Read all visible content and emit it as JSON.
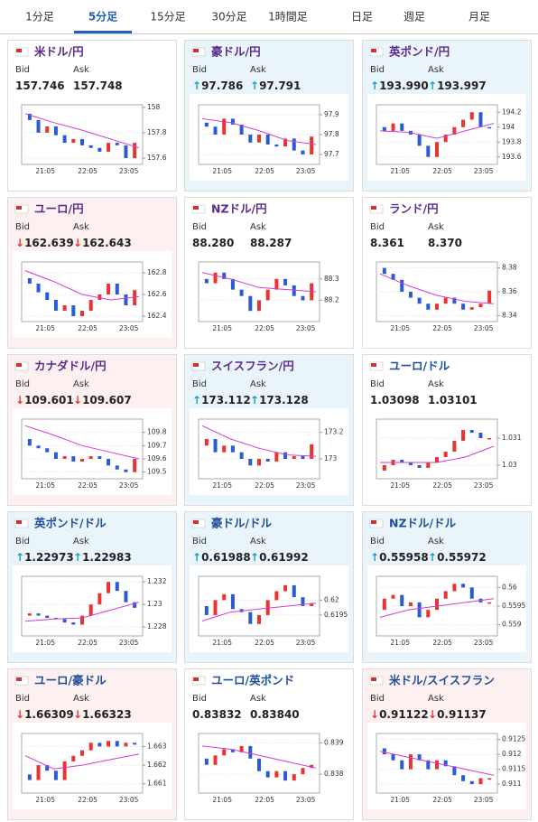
{
  "tabs": {
    "items": [
      "1分足",
      "5分足",
      "15分足",
      "30分足",
      "1時間足",
      "日足",
      "週足",
      "月足"
    ],
    "selected": 1
  },
  "labels": {
    "bid": "Bid",
    "ask": "Ask"
  },
  "panels": [
    {
      "title": "米ドル/円",
      "title_color": "#5a2a8e",
      "bg": "#ffffff",
      "arrow": null,
      "bid": "157.746",
      "ask": "157.748",
      "chart": {
        "type": "candle",
        "xticks": [
          "21:05",
          "22:05",
          "23:05"
        ],
        "ylim": [
          157.55,
          158.02
        ],
        "yticks": [
          157.6,
          157.8,
          158
        ],
        "values": [
          157.95,
          157.9,
          157.8,
          157.85,
          157.78,
          157.72,
          157.75,
          157.7,
          157.68,
          157.65,
          157.72,
          157.7,
          157.6,
          157.72
        ],
        "ma": [
          157.95,
          157.88,
          157.82,
          157.75,
          157.68
        ]
      }
    },
    {
      "title": "豪ドル/円",
      "title_color": "#5a2a8e",
      "bg": "#eaf4fb",
      "arrow": "↑",
      "bid": "97.786",
      "ask": "97.791",
      "chart": {
        "type": "candle",
        "xticks": [
          "21:05",
          "22:05",
          "23:05"
        ],
        "ylim": [
          97.65,
          97.95
        ],
        "yticks": [
          97.7,
          97.8,
          97.9
        ],
        "values": [
          97.86,
          97.84,
          97.8,
          97.88,
          97.85,
          97.8,
          97.76,
          97.8,
          97.75,
          97.74,
          97.78,
          97.72,
          97.7,
          97.79
        ],
        "ma": [
          97.88,
          97.86,
          97.82,
          97.77,
          97.75
        ]
      }
    },
    {
      "title": "英ポンド/円",
      "title_color": "#5a2a8e",
      "bg": "#eaf4fb",
      "arrow": "↑",
      "bid": "193.990",
      "ask": "193.997",
      "chart": {
        "type": "candle",
        "xticks": [
          "21:05",
          "22:05",
          "23:05"
        ],
        "ylim": [
          193.5,
          194.3
        ],
        "yticks": [
          193.6,
          193.8,
          194,
          194.2
        ],
        "values": [
          194.0,
          193.95,
          194.05,
          193.95,
          193.9,
          193.75,
          193.6,
          193.8,
          193.9,
          194.0,
          194.1,
          194.2,
          194.0,
          193.99
        ],
        "ma": [
          193.95,
          193.93,
          193.85,
          193.95,
          194.05
        ]
      }
    },
    {
      "title": "ユーロ/円",
      "title_color": "#5a2a8e",
      "bg": "#fdf0f0",
      "arrow": "↓",
      "bid": "162.639",
      "ask": "162.643",
      "chart": {
        "type": "candle",
        "xticks": [
          "21:05",
          "22:05",
          "23:05"
        ],
        "ylim": [
          162.35,
          162.9
        ],
        "yticks": [
          162.4,
          162.6,
          162.8
        ],
        "values": [
          162.75,
          162.7,
          162.62,
          162.55,
          162.45,
          162.5,
          162.4,
          162.45,
          162.55,
          162.6,
          162.7,
          162.6,
          162.5,
          162.64
        ],
        "ma": [
          162.82,
          162.72,
          162.6,
          162.55,
          162.58
        ]
      }
    },
    {
      "title": "NZドル/円",
      "title_color": "#5a2a8e",
      "bg": "#ffffff",
      "arrow": null,
      "bid": "88.280",
      "ask": "88.287",
      "chart": {
        "type": "candle",
        "xticks": [
          "21:05",
          "22:05",
          "23:05"
        ],
        "ylim": [
          88.1,
          88.38
        ],
        "yticks": [
          88.2,
          88.3
        ],
        "values": [
          88.3,
          88.28,
          88.33,
          88.3,
          88.25,
          88.22,
          88.15,
          88.2,
          88.25,
          88.3,
          88.27,
          88.22,
          88.2,
          88.28
        ],
        "ma": [
          88.33,
          88.3,
          88.26,
          88.25,
          88.24
        ]
      }
    },
    {
      "title": "ランド/円",
      "title_color": "#5a2a8e",
      "bg": "#ffffff",
      "arrow": null,
      "bid": "8.361",
      "ask": "8.370",
      "chart": {
        "type": "candle",
        "xticks": [
          "21:05",
          "22:05",
          "23:05"
        ],
        "ylim": [
          8.335,
          8.385
        ],
        "yticks": [
          8.34,
          8.36,
          8.38
        ],
        "values": [
          8.38,
          8.375,
          8.37,
          8.36,
          8.355,
          8.35,
          8.345,
          8.35,
          8.355,
          8.35,
          8.345,
          8.347,
          8.35,
          8.361
        ],
        "ma": [
          8.375,
          8.365,
          8.357,
          8.352,
          8.35
        ]
      }
    },
    {
      "title": "カナダドル/円",
      "title_color": "#5a2a8e",
      "bg": "#fdf0f0",
      "arrow": "↓",
      "bid": "109.601",
      "ask": "109.607",
      "chart": {
        "type": "candle",
        "xticks": [
          "21:05",
          "22:05",
          "23:05"
        ],
        "ylim": [
          109.45,
          109.9
        ],
        "yticks": [
          109.5,
          109.6,
          109.7,
          109.8
        ],
        "values": [
          109.75,
          109.7,
          109.68,
          109.65,
          109.6,
          109.62,
          109.58,
          109.6,
          109.62,
          109.6,
          109.55,
          109.52,
          109.5,
          109.6
        ],
        "ma": [
          109.85,
          109.78,
          109.7,
          109.65,
          109.6
        ]
      }
    },
    {
      "title": "スイスフラン/円",
      "title_color": "#5a2a8e",
      "bg": "#eaf4fb",
      "arrow": "↑",
      "bid": "173.112",
      "ask": "173.128",
      "chart": {
        "type": "candle",
        "xticks": [
          "21:05",
          "22:05",
          "23:05"
        ],
        "ylim": [
          172.85,
          173.3
        ],
        "yticks": [
          173,
          173.2
        ],
        "values": [
          173.1,
          173.15,
          173.05,
          173.1,
          173.05,
          173.0,
          172.95,
          173.0,
          172.98,
          173.05,
          173.0,
          173.02,
          173.0,
          173.11
        ],
        "ma": [
          173.25,
          173.15,
          173.08,
          173.03,
          173.02
        ]
      }
    },
    {
      "title": "ユーロ/ドル",
      "title_color": "#1f4f9c",
      "bg": "#ffffff",
      "arrow": null,
      "bid": "1.03098",
      "ask": "1.03101",
      "chart": {
        "type": "candle",
        "xticks": [
          "21:05",
          "22:05",
          "23:05"
        ],
        "ylim": [
          1.0295,
          1.0317
        ],
        "yticks": [
          1.03,
          1.031
        ],
        "values": [
          1.0298,
          1.03,
          1.0302,
          1.0301,
          1.03,
          1.0299,
          1.0301,
          1.0303,
          1.0305,
          1.0309,
          1.0313,
          1.0312,
          1.031,
          1.031
        ],
        "ma": [
          1.0301,
          1.0301,
          1.0301,
          1.0303,
          1.0307
        ]
      }
    },
    {
      "title": "英ポンド/ドル",
      "title_color": "#1f4f9c",
      "bg": "#eaf4fb",
      "arrow": "↑",
      "bid": "1.22973",
      "ask": "1.22983",
      "chart": {
        "type": "candle",
        "xticks": [
          "21:05",
          "22:05",
          "23:05"
        ],
        "ylim": [
          1.2272,
          1.2325
        ],
        "yticks": [
          1.228,
          1.23,
          1.232
        ],
        "values": [
          1.229,
          1.2292,
          1.229,
          1.2288,
          1.2287,
          1.2284,
          1.2282,
          1.229,
          1.23,
          1.231,
          1.232,
          1.2312,
          1.2302,
          1.2297
        ],
        "ma": [
          1.2285,
          1.2287,
          1.2288,
          1.2295,
          1.2302
        ]
      }
    },
    {
      "title": "豪ドル/ドル",
      "title_color": "#1f4f9c",
      "bg": "#eaf4fb",
      "arrow": "↑",
      "bid": "0.61988",
      "ask": "0.61992",
      "chart": {
        "type": "candle",
        "xticks": [
          "21:05",
          "22:05",
          "23:05"
        ],
        "ylim": [
          0.6188,
          0.6208
        ],
        "yticks": [
          0.6195,
          0.62
        ],
        "values": [
          0.6198,
          0.6195,
          0.62,
          0.6202,
          0.6197,
          0.6196,
          0.6192,
          0.6195,
          0.62,
          0.6203,
          0.6205,
          0.6201,
          0.6198,
          0.6199
        ],
        "ma": [
          0.6193,
          0.6196,
          0.6197,
          0.6198,
          0.6199
        ]
      }
    },
    {
      "title": "NZドル/ドル",
      "title_color": "#1f4f9c",
      "bg": "#eaf4fb",
      "arrow": "↑",
      "bid": "0.55958",
      "ask": "0.55972",
      "chart": {
        "type": "candle",
        "xticks": [
          "21:05",
          "22:05",
          "23:05"
        ],
        "ylim": [
          0.5587,
          0.5603
        ],
        "yticks": [
          0.559,
          0.5595,
          0.56
        ],
        "values": [
          0.5594,
          0.5597,
          0.5598,
          0.5595,
          0.5596,
          0.5592,
          0.5594,
          0.5597,
          0.5599,
          0.5601,
          0.56,
          0.5597,
          0.5596,
          0.5596
        ],
        "ma": [
          0.5592,
          0.5594,
          0.5595,
          0.5596,
          0.5597
        ]
      }
    },
    {
      "title": "ユーロ/豪ドル",
      "title_color": "#1f4f9c",
      "bg": "#fdf0f0",
      "arrow": "↓",
      "bid": "1.66309",
      "ask": "1.66323",
      "chart": {
        "type": "candle",
        "xticks": [
          "21:05",
          "22:05",
          "23:05"
        ],
        "ylim": [
          1.6605,
          1.6637
        ],
        "yticks": [
          1.661,
          1.662,
          1.663
        ],
        "values": [
          1.6615,
          1.6612,
          1.662,
          1.6617,
          1.6612,
          1.6622,
          1.6625,
          1.6628,
          1.6632,
          1.663,
          1.6633,
          1.663,
          1.6632,
          1.6631
        ],
        "ma": [
          1.6625,
          1.6618,
          1.662,
          1.6623,
          1.6626
        ]
      }
    },
    {
      "title": "ユーロ/英ポンド",
      "title_color": "#1f4f9c",
      "bg": "#ffffff",
      "arrow": null,
      "bid": "0.83832",
      "ask": "0.83840",
      "chart": {
        "type": "candle",
        "xticks": [
          "21:05",
          "22:05",
          "23:05"
        ],
        "ylim": [
          0.8374,
          0.8393
        ],
        "yticks": [
          0.838,
          0.839
        ],
        "values": [
          0.8385,
          0.8383,
          0.8386,
          0.8388,
          0.8387,
          0.8389,
          0.8385,
          0.8381,
          0.8379,
          0.8381,
          0.8378,
          0.838,
          0.8382,
          0.8383
        ],
        "ma": [
          0.8389,
          0.8388,
          0.8386,
          0.8384,
          0.8382
        ]
      }
    },
    {
      "title": "米ドル/スイスフラン",
      "title_color": "#1f4f9c",
      "bg": "#fdf0f0",
      "arrow": "↓",
      "bid": "0.91122",
      "ask": "0.91137",
      "chart": {
        "type": "candle",
        "xticks": [
          "21:05",
          "22:05",
          "23:05"
        ],
        "ylim": [
          0.9107,
          0.9127
        ],
        "yticks": [
          0.911,
          0.9115,
          0.912,
          0.9125
        ],
        "values": [
          0.9122,
          0.912,
          0.9118,
          0.9115,
          0.912,
          0.9118,
          0.9115,
          0.9118,
          0.9116,
          0.9113,
          0.9111,
          0.911,
          0.9112,
          0.9112
        ],
        "ma": [
          0.9121,
          0.9119,
          0.9117,
          0.9115,
          0.9113
        ]
      }
    }
  ]
}
